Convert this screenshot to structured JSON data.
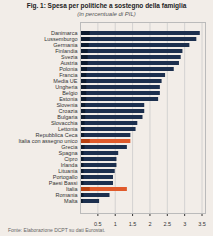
{
  "chart_data": {
    "type": "bar",
    "orientation": "horizontal",
    "title": "Fig. 1: Spesa per politiche a sostegno della famiglia",
    "subtitle": "(in percentuale di PIL)",
    "footnote": "Fonte: Elaborazione DCPT su dati Eurostat.",
    "categories": [
      "Danimarca",
      "Lussemburgo",
      "Germania",
      "Finlandia",
      "Svezia",
      "Austria",
      "Polonia",
      "Francia",
      "Media UE",
      "Ungheria",
      "Belgio",
      "Estonia",
      "Slovenia",
      "Croazia",
      "Bulgaria",
      "Slovacchia",
      "Lettonia",
      "Repubblica Ceca",
      "Italia con assegno unico",
      "Grecia",
      "Spagna",
      "Cipro",
      "Irlanda",
      "Lituania",
      "Portogallo",
      "Paesi Bassi",
      "Italia",
      "Romania",
      "Malta"
    ],
    "values": [
      3.45,
      3.35,
      3.15,
      2.95,
      2.9,
      2.85,
      2.7,
      2.45,
      2.35,
      2.3,
      2.3,
      2.25,
      1.85,
      1.85,
      1.8,
      1.65,
      1.6,
      1.45,
      1.45,
      1.35,
      1.1,
      1.05,
      1.05,
      1.0,
      0.95,
      0.95,
      1.35,
      0.85,
      0.55
    ],
    "colors": [
      "#1c2f4e",
      "#1c2f4e",
      "#1c2f4e",
      "#1c2f4e",
      "#1c2f4e",
      "#1c2f4e",
      "#1c2f4e",
      "#1c2f4e",
      "#1c2f4e",
      "#1c2f4e",
      "#1c2f4e",
      "#1c2f4e",
      "#1c2f4e",
      "#1c2f4e",
      "#1c2f4e",
      "#1c2f4e",
      "#1c2f4e",
      "#1c2f4e",
      "#e05a2b",
      "#1c2f4e",
      "#1c2f4e",
      "#1c2f4e",
      "#1c2f4e",
      "#1c2f4e",
      "#1c2f4e",
      "#1c2f4e",
      "#e05a2b",
      "#1c2f4e",
      "#1c2f4e"
    ],
    "dark_segment": {
      "values": [
        0.28,
        0.28,
        0.25,
        0.22,
        0.22,
        0.22,
        0.2,
        0.18,
        0.18,
        0.18,
        0.18,
        0.18,
        0.15,
        0.15,
        0.15,
        0.13,
        0.13,
        0.12,
        0.28,
        0.13,
        0.1,
        0.1,
        0.1,
        0.1,
        0.1,
        0.1,
        0.28,
        0.1,
        0.08
      ],
      "colors": [
        "#0d1b2e",
        "#0d1b2e",
        "#0d1b2e",
        "#0d1b2e",
        "#0d1b2e",
        "#0d1b2e",
        "#0d1b2e",
        "#0d1b2e",
        "#0d1b2e",
        "#0d1b2e",
        "#0d1b2e",
        "#0d1b2e",
        "#0d1b2e",
        "#0d1b2e",
        "#0d1b2e",
        "#0d1b2e",
        "#0d1b2e",
        "#0d1b2e",
        "#b84010",
        "#0d1b2e",
        "#0d1b2e",
        "#0d1b2e",
        "#0d1b2e",
        "#0d1b2e",
        "#0d1b2e",
        "#0d1b2e",
        "#b84010",
        "#0d1b2e",
        "#0d1b2e"
      ]
    },
    "xlim": [
      0,
      3.6
    ],
    "xticks": [
      0.5,
      1,
      1.5,
      2,
      2.5,
      3,
      3.5
    ],
    "grid": true
  }
}
